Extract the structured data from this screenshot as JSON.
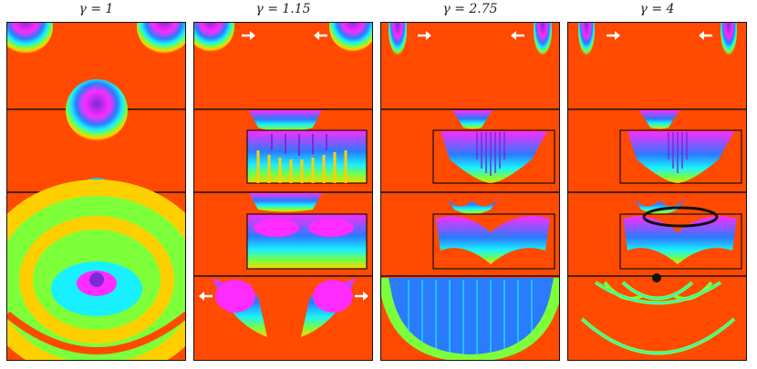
{
  "columns": [
    {
      "label": "γ = 1"
    },
    {
      "label": "γ = 1.15"
    },
    {
      "label": "γ = 2.75"
    },
    {
      "label": "γ = 4"
    }
  ],
  "colors": {
    "background": "#ff4a00",
    "yellow": "#ffd000",
    "green": "#7dff3a",
    "cyan": "#19f0ff",
    "blue": "#2b7bff",
    "magenta": "#ff2bff",
    "purple": "#7a2bd6",
    "black": "#111111",
    "arrow": "#ffffff"
  },
  "icons": {
    "arrow_left": "arrow-left-icon",
    "arrow_right": "arrow-right-icon"
  }
}
